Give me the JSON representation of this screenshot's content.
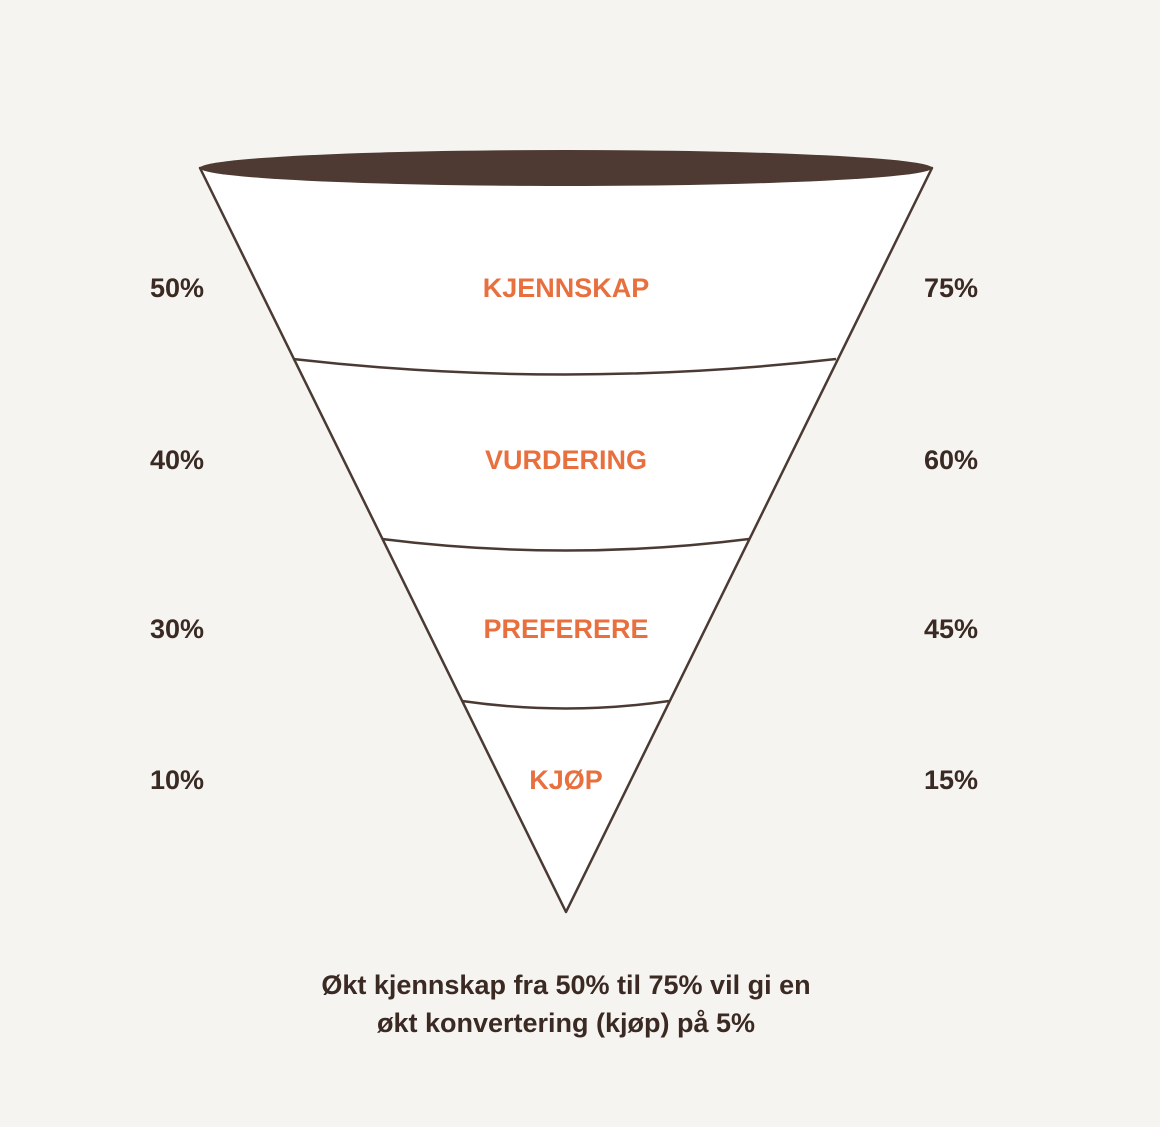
{
  "stages": [
    {
      "label": "KJENNSKAP",
      "left": "50%",
      "right": "75%"
    },
    {
      "label": "VURDERING",
      "left": "40%",
      "right": "60%"
    },
    {
      "label": "PREFERERE",
      "left": "30%",
      "right": "45%"
    },
    {
      "label": "KJØP",
      "left": "10%",
      "right": "15%"
    }
  ],
  "caption": {
    "line1": "Økt kjennskap fra 50% til 75% vil gi en",
    "line2": "økt konvertering (kjøp) på 5%"
  },
  "colors": {
    "background": "#f6f4f0",
    "funnel_fill": "#ffffff",
    "outline": "#4a3a33",
    "rim": "#4e3a32",
    "stage_label": "#e8703f",
    "percent_text": "#3a2a23"
  }
}
